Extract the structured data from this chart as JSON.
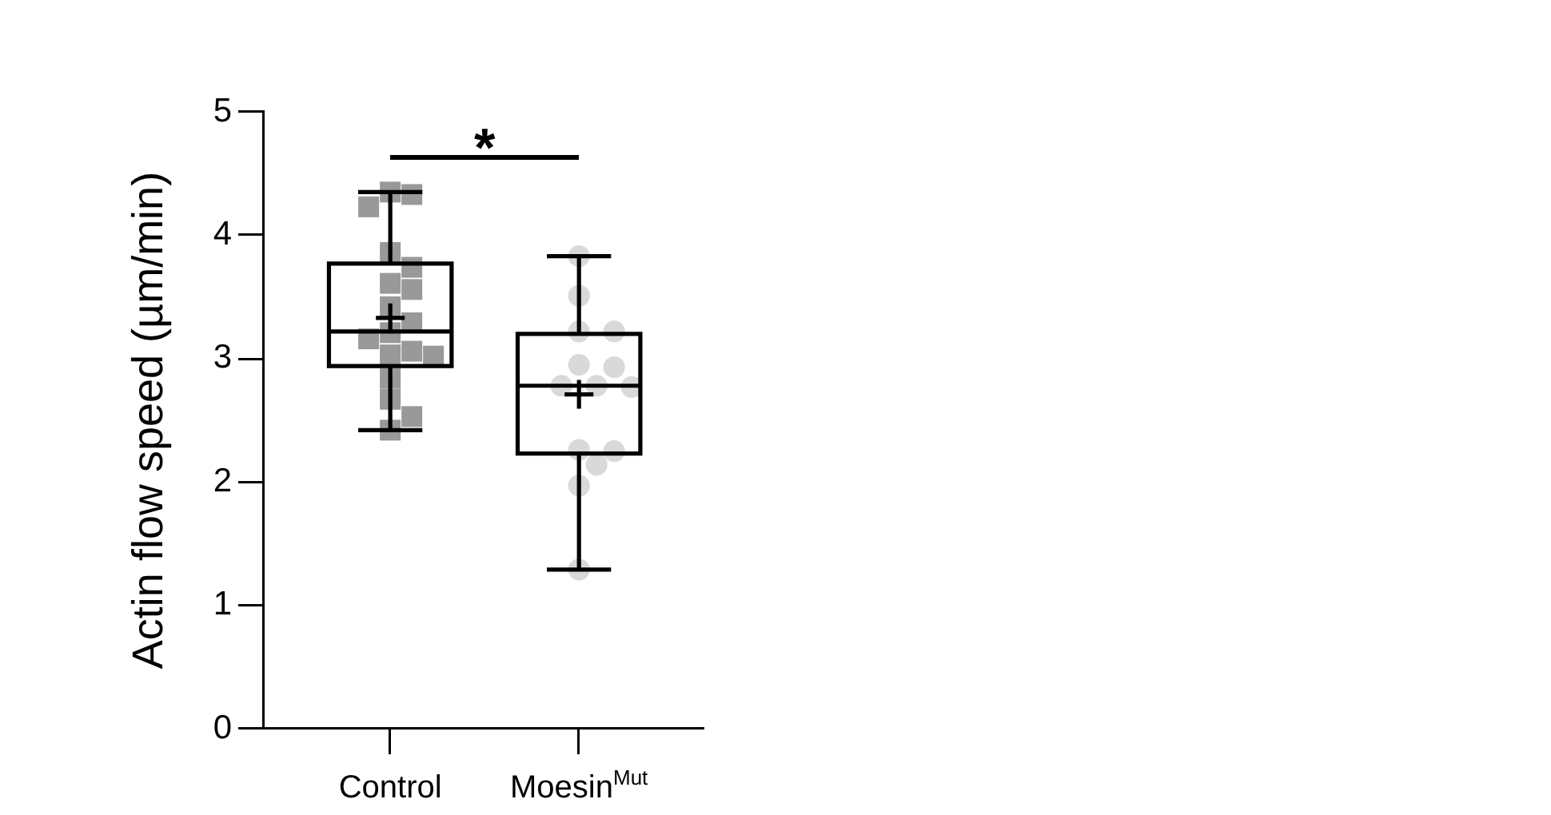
{
  "chart_data": {
    "type": "box",
    "categories": [
      "Control",
      "Moesin$^{Mut}$"
    ],
    "ylabel": "Actin flow speed (µm/min)",
    "color": "#000000",
    "boxes": [
      {
        "low": 2.42,
        "q1": 2.94,
        "median": 3.22,
        "q3": 3.77,
        "high": 4.35,
        "mean": 3.33
      },
      {
        "low": 1.29,
        "q1": 2.23,
        "median": 2.78,
        "q3": 3.2,
        "high": 3.83,
        "mean": 2.71
      }
    ],
    "series": [
      {
        "type": "scatter",
        "x": [
          "Control",
          "Control",
          "Control",
          "Control",
          "Control",
          "Control",
          "Control",
          "Control",
          "Control",
          "Control",
          "Control",
          "Control",
          "Control",
          "Control",
          "Control",
          "Control",
          "Control",
          "Control"
        ],
        "values": [
          4.35,
          4.33,
          4.23,
          3.86,
          3.74,
          3.61,
          3.56,
          3.42,
          3.29,
          3.21,
          3.16,
          3.06,
          3.03,
          3.02,
          2.84,
          2.67,
          2.53,
          2.42
        ],
        "color": "#999999",
        "marker": "square"
      },
      {
        "type": "scatter",
        "x": [
          "Moesin$^{Mut}$",
          "Moesin$^{Mut}$",
          "Moesin$^{Mut}$",
          "Moesin$^{Mut}$",
          "Moesin$^{Mut}$",
          "Moesin$^{Mut}$",
          "Moesin$^{Mut}$",
          "Moesin$^{Mut}$",
          "Moesin$^{Mut}$",
          "Moesin$^{Mut}$",
          "Moesin$^{Mut}$",
          "Moesin$^{Mut}$",
          "Moesin$^{Mut}$",
          "Moesin$^{Mut}$"
        ],
        "values": [
          3.83,
          3.51,
          3.22,
          3.22,
          2.95,
          2.93,
          2.78,
          2.78,
          2.77,
          2.26,
          2.25,
          2.14,
          1.97,
          1.29
        ],
        "color": "#d9d9d9",
        "marker": "circle"
      }
    ],
    "ylim": [
      0,
      5
    ],
    "yticks": [
      0,
      1,
      2,
      3,
      4,
      5
    ],
    "annotations": [
      "*"
    ],
    "grid": false,
    "legend": false
  }
}
